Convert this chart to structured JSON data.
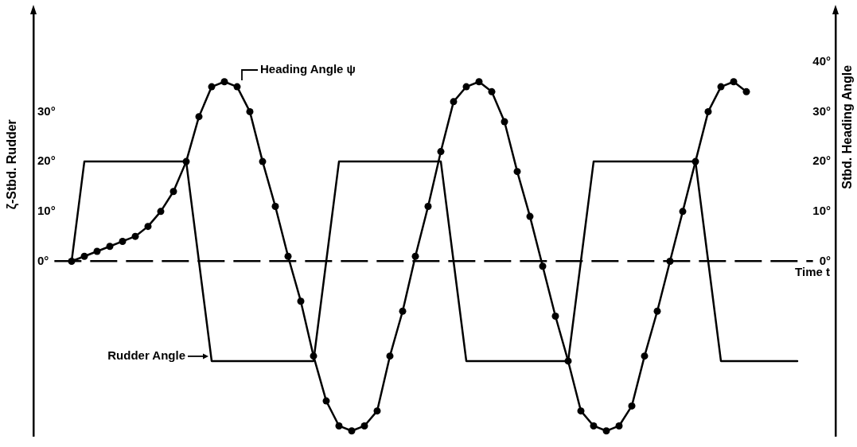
{
  "chart_data": {
    "type": "line",
    "xlabel": "Time t",
    "ylabel": "ζ-Stbd. Rudder",
    "y2label": "Stbd. Heading Angle",
    "categories": [
      null,
      null,
      null,
      null,
      null,
      null,
      null,
      null,
      null,
      null,
      null,
      null,
      null,
      null,
      null,
      null,
      null,
      null,
      null,
      null,
      null,
      null,
      null,
      null,
      null,
      null,
      null,
      null,
      null,
      null,
      null,
      null,
      null,
      null,
      null,
      null,
      null,
      null,
      null,
      null,
      null,
      null,
      null,
      null,
      null,
      null,
      null,
      null,
      null,
      null,
      null,
      null,
      null,
      null,
      null,
      null,
      null,
      null,
      null,
      null,
      null,
      null,
      null,
      null
    ],
    "series": [
      {
        "name": "Heading Angle ψ",
        "color": "#000000",
        "marker": "circle",
        "values": [
          null,
          null,
          null,
          0,
          1,
          2,
          3,
          4,
          5,
          7,
          10,
          14,
          20,
          29,
          35,
          36,
          35,
          30,
          20,
          11,
          1,
          -8,
          -19,
          -28,
          -33,
          -34,
          -33,
          -30,
          -19,
          -10,
          1,
          11,
          22,
          32,
          35,
          36,
          34,
          28,
          18,
          9,
          -1,
          -11,
          -20,
          -30,
          -33,
          -34,
          -33,
          -29,
          -19,
          -10,
          0,
          10,
          20,
          30,
          35,
          36,
          34,
          null,
          null,
          null,
          null,
          null,
          null,
          null
        ]
      },
      {
        "name": "Rudder Angle",
        "color": "#000000",
        "marker": "none",
        "values": [
          null,
          null,
          null,
          0,
          20,
          20,
          20,
          20,
          20,
          20,
          20,
          20,
          20,
          0,
          -20,
          -20,
          -20,
          -20,
          -20,
          -20,
          -20,
          -20,
          -20,
          0,
          20,
          20,
          20,
          20,
          20,
          20,
          20,
          20,
          20,
          0,
          -20,
          -20,
          -20,
          -20,
          -20,
          -20,
          -20,
          -20,
          -20,
          0,
          20,
          20,
          20,
          20,
          20,
          20,
          20,
          20,
          20,
          0,
          -20,
          -20,
          -20,
          -20,
          -20,
          -20,
          -20,
          null,
          null,
          null
        ]
      }
    ],
    "ylim": [
      -35,
      50
    ],
    "yticks": [
      {
        "value": 0,
        "label": "0°"
      },
      {
        "value": 10,
        "label": "10°"
      },
      {
        "value": 20,
        "label": "20°"
      },
      {
        "value": 30,
        "label": "30°"
      }
    ],
    "y2lim": [
      -35,
      50
    ],
    "y2ticks": [
      {
        "value": 0,
        "label": "0°"
      },
      {
        "value": 10,
        "label": "10°"
      },
      {
        "value": 20,
        "label": "20°"
      },
      {
        "value": 30,
        "label": "30°"
      },
      {
        "value": 40,
        "label": "40°"
      }
    ]
  }
}
